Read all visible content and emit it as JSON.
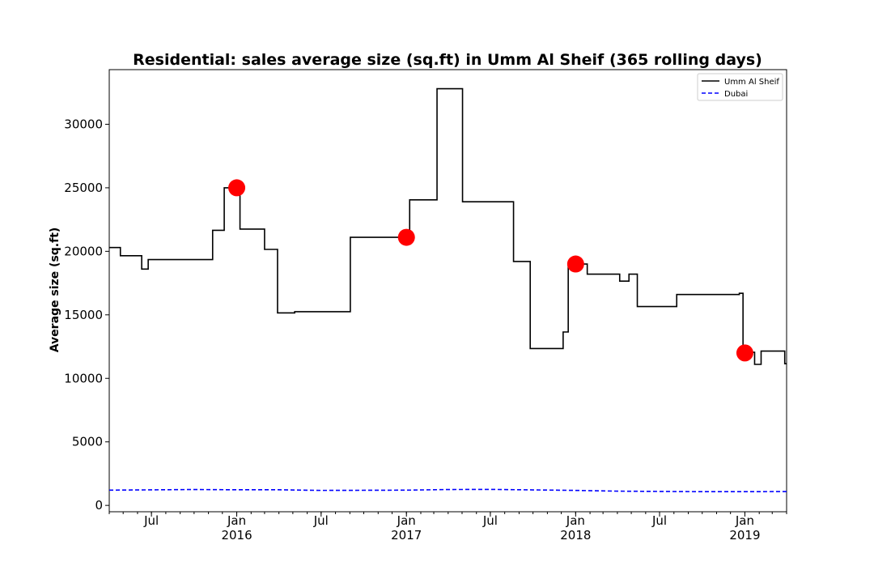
{
  "chart_data": {
    "type": "line",
    "title": "Residential: sales average size (sq.ft) in Umm Al Sheif (365 rolling days)",
    "xlabel": "",
    "ylabel": "Average size (sq.ft)",
    "xlim": [
      "2015-04-01",
      "2019-04-01"
    ],
    "ylim": [
      -500,
      34300
    ],
    "yticks": [
      0,
      5000,
      10000,
      15000,
      20000,
      25000,
      30000
    ],
    "ytick_labels": [
      "0",
      "5000",
      "10000",
      "15000",
      "20000",
      "25000",
      "30000"
    ],
    "xticks": [
      {
        "date": "2015-07-01",
        "label": "Jul",
        "year_label": ""
      },
      {
        "date": "2016-01-01",
        "label": "Jan",
        "year_label": "2016"
      },
      {
        "date": "2016-07-01",
        "label": "Jul",
        "year_label": ""
      },
      {
        "date": "2017-01-01",
        "label": "Jan",
        "year_label": "2017"
      },
      {
        "date": "2017-07-01",
        "label": "Jul",
        "year_label": ""
      },
      {
        "date": "2018-01-01",
        "label": "Jan",
        "year_label": "2018"
      },
      {
        "date": "2018-07-01",
        "label": "Jul",
        "year_label": ""
      },
      {
        "date": "2019-01-01",
        "label": "Jan",
        "year_label": "2019"
      }
    ],
    "grid": false,
    "legend_position": "top-right",
    "series": [
      {
        "name": "Umm Al Sheif",
        "color": "#000000",
        "style": "solid",
        "drawstyle": "steps-post",
        "points": [
          [
            "2015-04-01",
            20300
          ],
          [
            "2015-04-25",
            19650
          ],
          [
            "2015-06-10",
            18600
          ],
          [
            "2015-06-24",
            19350
          ],
          [
            "2015-11-10",
            21650
          ],
          [
            "2015-12-05",
            25000
          ],
          [
            "2016-01-08",
            21750
          ],
          [
            "2016-03-01",
            20150
          ],
          [
            "2016-03-29",
            15150
          ],
          [
            "2016-05-05",
            15250
          ],
          [
            "2016-09-02",
            21100
          ],
          [
            "2017-01-08",
            24050
          ],
          [
            "2017-03-08",
            32800
          ],
          [
            "2017-05-02",
            23900
          ],
          [
            "2017-08-20",
            19200
          ],
          [
            "2017-09-25",
            12350
          ],
          [
            "2017-12-05",
            13650
          ],
          [
            "2017-12-16",
            19000
          ],
          [
            "2018-01-26",
            18200
          ],
          [
            "2018-04-06",
            17650
          ],
          [
            "2018-04-26",
            18200
          ],
          [
            "2018-05-14",
            15650
          ],
          [
            "2018-08-07",
            16600
          ],
          [
            "2018-12-20",
            16700
          ],
          [
            "2018-12-28",
            12050
          ],
          [
            "2019-01-22",
            11100
          ],
          [
            "2019-02-05",
            12150
          ],
          [
            "2019-03-28",
            11150
          ],
          [
            "2019-04-01",
            11150
          ]
        ]
      },
      {
        "name": "Dubai",
        "color": "#0000ff",
        "style": "dashed",
        "drawstyle": "default",
        "points": [
          [
            "2015-04-01",
            1200
          ],
          [
            "2015-10-01",
            1250
          ],
          [
            "2016-01-01",
            1230
          ],
          [
            "2016-04-01",
            1230
          ],
          [
            "2016-07-01",
            1180
          ],
          [
            "2017-01-01",
            1200
          ],
          [
            "2017-04-01",
            1250
          ],
          [
            "2017-07-01",
            1260
          ],
          [
            "2017-10-01",
            1220
          ],
          [
            "2018-01-01",
            1180
          ],
          [
            "2018-04-01",
            1120
          ],
          [
            "2018-07-01",
            1100
          ],
          [
            "2018-10-01",
            1080
          ],
          [
            "2019-01-01",
            1080
          ],
          [
            "2019-04-01",
            1090
          ]
        ]
      }
    ],
    "markers": {
      "color": "#ff0000",
      "points": [
        [
          "2016-01-01",
          25000
        ],
        [
          "2017-01-01",
          21100
        ],
        [
          "2018-01-01",
          19000
        ],
        [
          "2019-01-01",
          12000
        ]
      ]
    }
  }
}
